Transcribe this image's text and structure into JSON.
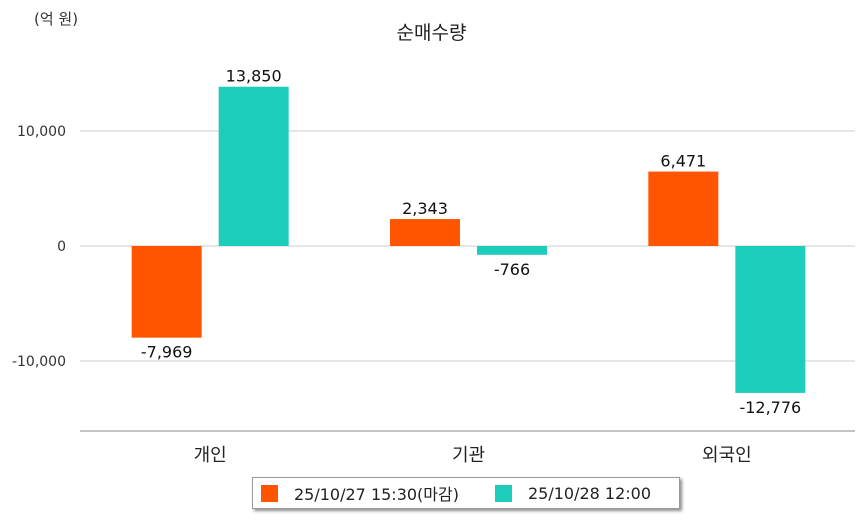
{
  "unit_label": "(억 원)",
  "chart_data": {
    "type": "bar",
    "title": "순매수량",
    "categories": [
      "개인",
      "기관",
      "외국인"
    ],
    "series": [
      {
        "name": "25/10/27 15:30(마감)",
        "color": "#ff5400",
        "values": [
          -7969,
          2343,
          6471
        ],
        "labels": [
          "-7,969",
          "2,343",
          "6,471"
        ]
      },
      {
        "name": "25/10/28 12:00",
        "color": "#1dcdbb",
        "values": [
          13850,
          -766,
          -12776
        ],
        "labels": [
          "13,850",
          "-766",
          "-12,776"
        ]
      }
    ],
    "yticks": [
      10000,
      0,
      -10000
    ],
    "ytick_labels": [
      "10,000",
      "0",
      "-10,000"
    ],
    "ylim": [
      -16000,
      16000
    ],
    "grid": true,
    "legend": "bottom-center"
  }
}
